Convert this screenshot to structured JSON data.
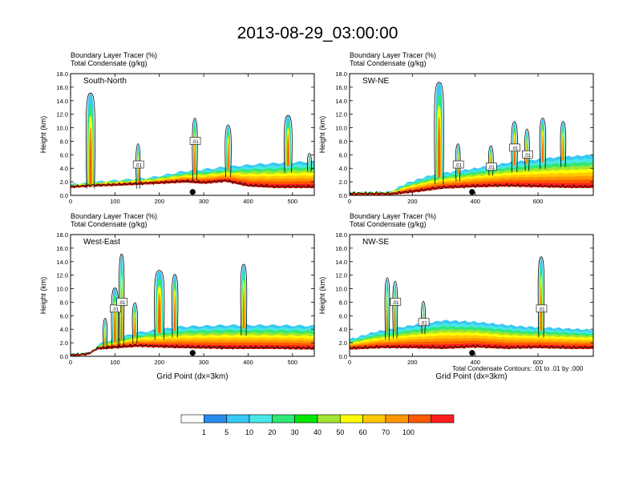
{
  "title": "2013-08-29_03:00:00",
  "chart_data": [
    {
      "type": "heatmap",
      "panel_label": "South-North",
      "header_lines": [
        "Boundary Layer Tracer   (%)",
        "Total Condensate   (g/kg)"
      ],
      "ylabel": "Height (km)",
      "xlabel": "",
      "xlim": [
        0,
        549
      ],
      "ylim": [
        0,
        18
      ],
      "x_ticks": [
        0,
        100,
        200,
        300,
        400,
        500
      ],
      "y_ticks": [
        0.0,
        2.0,
        4.0,
        6.0,
        8.0,
        10.0,
        12.0,
        14.0,
        16.0,
        18.0
      ],
      "location_marker_x": 275,
      "contour_labels": [
        ".01",
        ".01"
      ],
      "terrain": [
        [
          0,
          1.3
        ],
        [
          50,
          1.5
        ],
        [
          100,
          1.6
        ],
        [
          200,
          1.9
        ],
        [
          260,
          2.1
        ],
        [
          300,
          1.9
        ],
        [
          350,
          2.2
        ],
        [
          400,
          1.5
        ],
        [
          460,
          1.3
        ],
        [
          549,
          1.3
        ]
      ],
      "mixed_layer_top": [
        [
          0,
          1.6
        ],
        [
          60,
          2.0
        ],
        [
          120,
          2.3
        ],
        [
          180,
          2.6
        ],
        [
          250,
          3.5
        ],
        [
          350,
          4.2
        ],
        [
          420,
          4.6
        ],
        [
          500,
          4.9
        ],
        [
          549,
          5.0
        ]
      ],
      "plumes": [
        [
          45,
          15.0,
          16
        ],
        [
          152,
          7.5,
          6
        ],
        [
          280,
          11.3,
          8
        ],
        [
          355,
          10.3,
          10
        ],
        [
          490,
          11.7,
          14
        ],
        [
          538,
          6.1,
          6
        ]
      ]
    },
    {
      "type": "heatmap",
      "panel_label": "SW-NE",
      "header_lines": [
        "Boundary Layer Tracer   (%)",
        "Total Condensate   (g/kg)"
      ],
      "ylabel": "Height (km)",
      "xlabel": "",
      "xlim": [
        0,
        776
      ],
      "ylim": [
        0,
        18
      ],
      "x_ticks": [
        0,
        200,
        400,
        600
      ],
      "y_ticks": [
        0.0,
        2.0,
        4.0,
        6.0,
        8.0,
        10.0,
        12.0,
        14.0,
        16.0,
        18.0
      ],
      "location_marker_x": 390,
      "contour_labels": [
        ".01",
        ".01",
        ".01",
        ".01"
      ],
      "terrain": [
        [
          0,
          0.3
        ],
        [
          140,
          0.3
        ],
        [
          200,
          0.6
        ],
        [
          300,
          1.2
        ],
        [
          400,
          1.4
        ],
        [
          500,
          1.5
        ],
        [
          600,
          1.4
        ],
        [
          700,
          1.3
        ],
        [
          776,
          1.3
        ]
      ],
      "mixed_layer_top": [
        [
          0,
          0.4
        ],
        [
          130,
          0.5
        ],
        [
          180,
          1.8
        ],
        [
          260,
          3.0
        ],
        [
          400,
          4.0
        ],
        [
          500,
          4.8
        ],
        [
          650,
          5.6
        ],
        [
          776,
          6.0
        ]
      ],
      "plumes": [
        [
          285,
          16.6,
          24
        ],
        [
          345,
          7.5,
          10
        ],
        [
          450,
          7.2,
          10
        ],
        [
          525,
          10.8,
          14
        ],
        [
          565,
          9.7,
          10
        ],
        [
          615,
          11.3,
          14
        ],
        [
          680,
          10.8,
          12
        ]
      ]
    },
    {
      "type": "heatmap",
      "panel_label": "West-East",
      "header_lines": [
        "Boundary Layer Tracer   (%)",
        "Total Condensate   (g/kg)"
      ],
      "ylabel": "Height (km)",
      "xlabel": "Grid Point (dx=3km)",
      "xlim": [
        0,
        549
      ],
      "ylim": [
        0,
        18
      ],
      "x_ticks": [
        0,
        100,
        200,
        300,
        400,
        500
      ],
      "y_ticks": [
        0.0,
        2.0,
        4.0,
        6.0,
        8.0,
        10.0,
        12.0,
        14.0,
        16.0,
        18.0
      ],
      "location_marker_x": 275,
      "contour_labels": [
        ".01",
        ".01"
      ],
      "terrain": [
        [
          0,
          0.2
        ],
        [
          40,
          0.4
        ],
        [
          60,
          1.2
        ],
        [
          150,
          1.6
        ],
        [
          250,
          1.4
        ],
        [
          350,
          1.3
        ],
        [
          450,
          1.3
        ],
        [
          549,
          1.2
        ]
      ],
      "mixed_layer_top": [
        [
          0,
          0.3
        ],
        [
          45,
          0.5
        ],
        [
          70,
          2.0
        ],
        [
          150,
          3.5
        ],
        [
          250,
          4.4
        ],
        [
          350,
          4.6
        ],
        [
          450,
          4.6
        ],
        [
          549,
          4.5
        ]
      ],
      "plumes": [
        [
          78,
          5.5,
          6
        ],
        [
          100,
          10.0,
          12
        ],
        [
          115,
          15.0,
          8
        ],
        [
          145,
          7.8,
          8
        ],
        [
          200,
          12.6,
          18
        ],
        [
          235,
          12.0,
          10
        ],
        [
          390,
          13.5,
          10
        ]
      ]
    },
    {
      "type": "heatmap",
      "panel_label": "NW-SE",
      "header_lines": [
        "Boundary Layer Tracer   (%)",
        "Total Condensate   (g/kg)"
      ],
      "ylabel": "Height (km)",
      "xlabel": "Grid Point (dx=3km)",
      "xlim": [
        0,
        776
      ],
      "ylim": [
        0,
        18
      ],
      "x_ticks": [
        0,
        200,
        400,
        600
      ],
      "y_ticks": [
        0.0,
        2.0,
        4.0,
        6.0,
        8.0,
        10.0,
        12.0,
        14.0,
        16.0,
        18.0
      ],
      "location_marker_x": 390,
      "contour_labels": [
        ".01",
        ".01",
        ".01"
      ],
      "terrain": [
        [
          0,
          1.2
        ],
        [
          100,
          1.4
        ],
        [
          200,
          1.4
        ],
        [
          300,
          1.3
        ],
        [
          400,
          1.5
        ],
        [
          500,
          1.3
        ],
        [
          600,
          1.4
        ],
        [
          700,
          1.3
        ],
        [
          776,
          1.3
        ]
      ],
      "mixed_layer_top": [
        [
          0,
          2.5
        ],
        [
          80,
          3.6
        ],
        [
          200,
          4.6
        ],
        [
          300,
          5.3
        ],
        [
          400,
          5.1
        ],
        [
          550,
          4.4
        ],
        [
          650,
          4.2
        ],
        [
          776,
          3.9
        ]
      ],
      "plumes": [
        [
          120,
          11.5,
          10
        ],
        [
          145,
          11.0,
          10
        ],
        [
          235,
          8.0,
          8
        ],
        [
          610,
          14.6,
          14
        ]
      ]
    }
  ],
  "note": "Total Condensate Contours: .01 to .01 by .000",
  "colorbar": {
    "labels": [
      "1",
      "5",
      "10",
      "20",
      "30",
      "40",
      "50",
      "60",
      "70",
      "100"
    ],
    "colors": [
      "#ffffff",
      "#2a8cf0",
      "#37c8f5",
      "#4ae6e6",
      "#2fe876",
      "#00e600",
      "#a0e632",
      "#ffff00",
      "#ffc800",
      "#ff9600",
      "#ff5a00",
      "#ff1e1e"
    ]
  }
}
